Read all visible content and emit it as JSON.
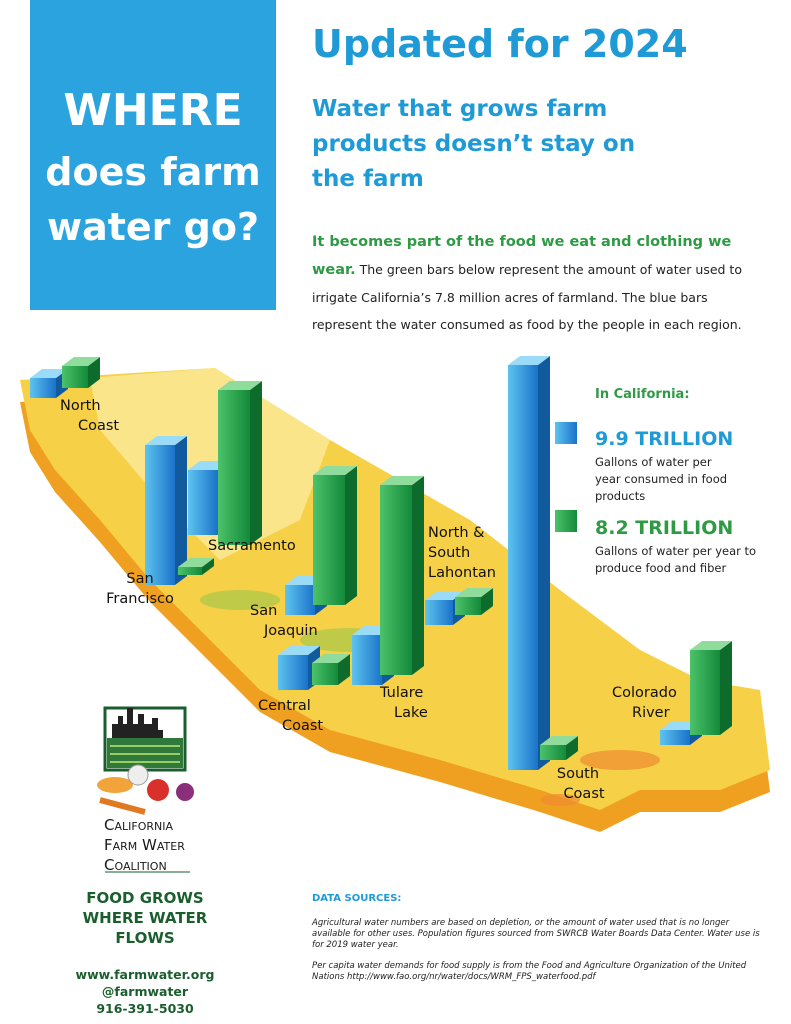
{
  "banner": {
    "lines": [
      "WHERE",
      "does farm",
      "water go?"
    ]
  },
  "heading": "Updated for 2024",
  "subheading": {
    "lines": [
      "Water that grows farm",
      "products doesn’t stay on",
      "the farm"
    ]
  },
  "intro": {
    "lead": "It becomes part of the food we eat and clothing we wear.",
    "body": "The green bars below represent the amount of water used to irrigate California’s 7.8 million acres of farmland. The blue bars represent the water consumed as food by the people in each region."
  },
  "legend": {
    "title": "In California:",
    "items": [
      {
        "amount": "9.9 TRILLION",
        "description": "Gallons of water per year consumed in food products"
      },
      {
        "amount": "8.2 TRILLION",
        "description": "Gallons of water per year to produce food and fiber"
      }
    ]
  },
  "regions": [
    {
      "lines": [
        "North",
        "Coast"
      ]
    },
    {
      "lines": [
        "Sacramento"
      ]
    },
    {
      "lines": [
        "San",
        "Francisco"
      ]
    },
    {
      "lines": [
        "San",
        "Joaquin"
      ]
    },
    {
      "lines": [
        "Central",
        "Coast"
      ]
    },
    {
      "lines": [
        "Tulare",
        "Lake"
      ]
    },
    {
      "lines": [
        "North &",
        "South",
        "Lahontan"
      ]
    },
    {
      "lines": [
        "South",
        "Coast"
      ]
    },
    {
      "lines": [
        "Colorado",
        "River"
      ]
    }
  ],
  "logo": {
    "lines": [
      "California",
      "Farm Water",
      "Coalition"
    ]
  },
  "tagline": {
    "lines": [
      "FOOD GROWS",
      "WHERE WATER",
      "FLOWS"
    ]
  },
  "contact": [
    "www.farmwater.org",
    "@farmwater",
    "916-391-5030"
  ],
  "sources": {
    "title": "DATA SOURCES:",
    "paragraphs": [
      "Agricultural water numbers are based on depletion, or the amount of water used that is no longer available for other uses. Population figures sourced from SWRCB Water Boards Data Center. Water use is for 2019 water year.",
      "Per capita water demands for food supply is from the Food and Agriculture Organization of the United Nations http://www.fao.org/nr/water/docs/WRM_FPS_waterfood.pdf"
    ]
  }
}
